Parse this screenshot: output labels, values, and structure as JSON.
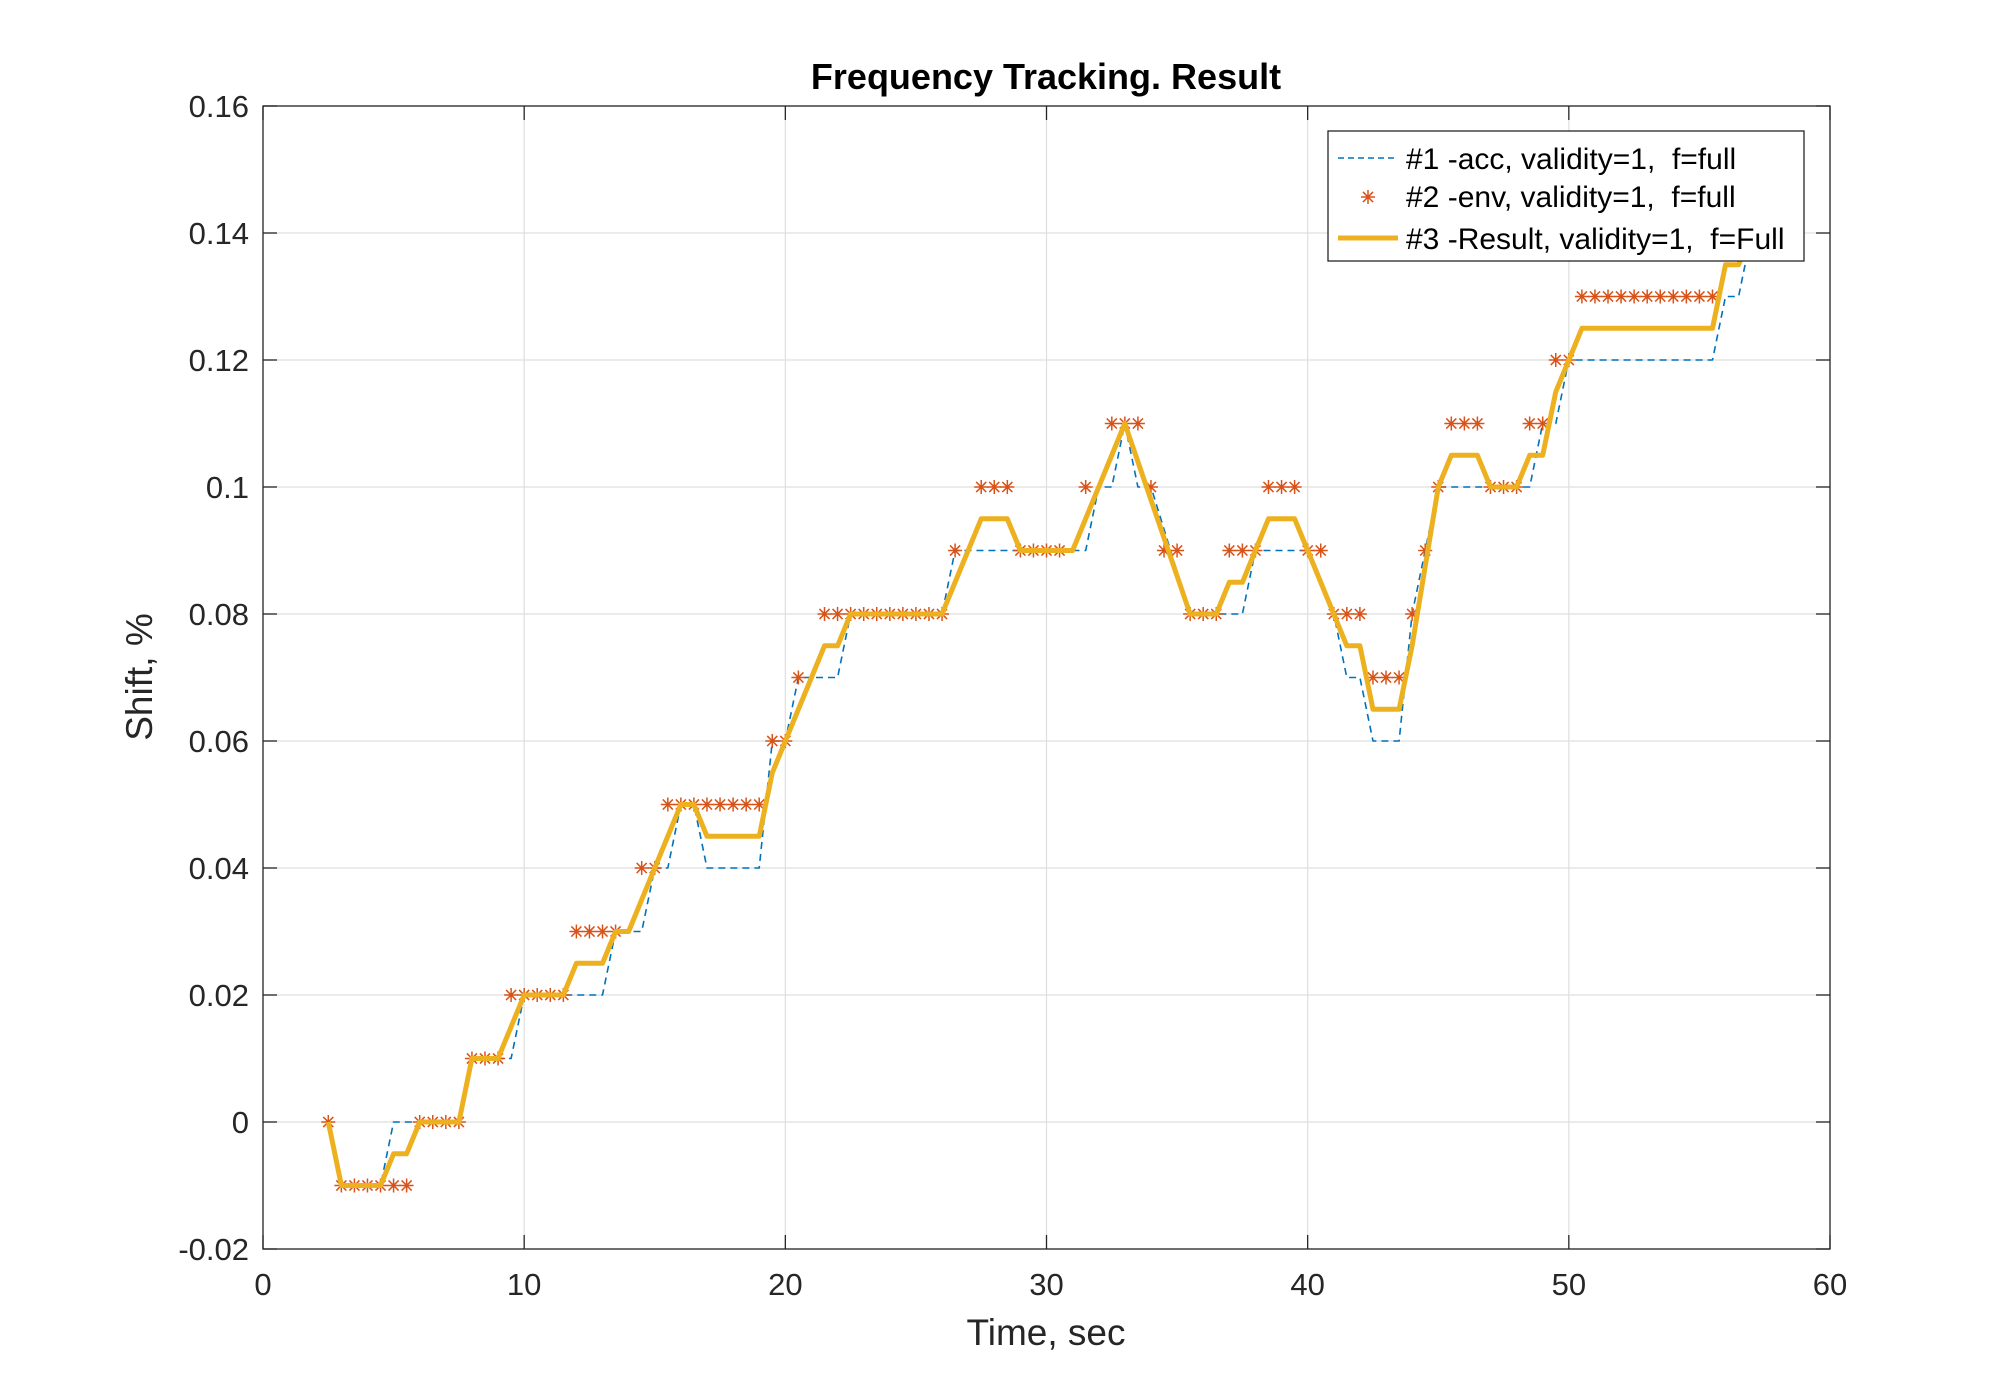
{
  "chart_data": {
    "type": "line",
    "title": "Frequency Tracking. Result",
    "xlabel": "Time, sec",
    "ylabel": "Shift, %",
    "xlim": [
      0,
      60
    ],
    "ylim": [
      -0.02,
      0.16
    ],
    "xticks": [
      0,
      10,
      20,
      30,
      40,
      50,
      60
    ],
    "xtick_labels": [
      "0",
      "10",
      "20",
      "30",
      "40",
      "50",
      "60"
    ],
    "yticks": [
      -0.02,
      0,
      0.02,
      0.04,
      0.06,
      0.08,
      0.1,
      0.12,
      0.14,
      0.16
    ],
    "ytick_labels": [
      "-0.02",
      "0",
      "0.02",
      "0.04",
      "0.06",
      "0.08",
      "0.1",
      "0.12",
      "0.14",
      "0.16"
    ],
    "grid": true,
    "legend_position": "top-right",
    "series": [
      {
        "name": "#1 -acc, validity=1,  f=full",
        "style": "dashed-line",
        "color": "#0072BD",
        "points": [
          [
            2.5,
            0
          ],
          [
            3.0,
            -0.01
          ],
          [
            4.5,
            -0.01
          ],
          [
            5.0,
            0
          ],
          [
            7.5,
            0
          ],
          [
            8.0,
            0.01
          ],
          [
            9.5,
            0.01
          ],
          [
            10.0,
            0.02
          ],
          [
            13.0,
            0.02
          ],
          [
            13.5,
            0.03
          ],
          [
            14.5,
            0.03
          ],
          [
            15.0,
            0.04
          ],
          [
            15.5,
            0.04
          ],
          [
            16.0,
            0.05
          ],
          [
            16.5,
            0.05
          ],
          [
            17.0,
            0.04
          ],
          [
            19.0,
            0.04
          ],
          [
            19.5,
            0.06
          ],
          [
            20.0,
            0.06
          ],
          [
            20.5,
            0.07
          ],
          [
            22.0,
            0.07
          ],
          [
            22.5,
            0.08
          ],
          [
            26.0,
            0.08
          ],
          [
            26.5,
            0.09
          ],
          [
            31.5,
            0.09
          ],
          [
            32.0,
            0.1
          ],
          [
            32.5,
            0.1
          ],
          [
            33.0,
            0.11
          ],
          [
            33.5,
            0.1
          ],
          [
            34.0,
            0.1
          ],
          [
            35.5,
            0.08
          ],
          [
            37.5,
            0.08
          ],
          [
            38.0,
            0.09
          ],
          [
            40.0,
            0.09
          ],
          [
            41.0,
            0.08
          ],
          [
            41.5,
            0.07
          ],
          [
            42.0,
            0.07
          ],
          [
            42.5,
            0.06
          ],
          [
            43.5,
            0.06
          ],
          [
            44.0,
            0.08
          ],
          [
            45.0,
            0.1
          ],
          [
            48.5,
            0.1
          ],
          [
            49.0,
            0.11
          ],
          [
            49.5,
            0.11
          ],
          [
            50.0,
            0.12
          ],
          [
            55.5,
            0.12
          ],
          [
            56.0,
            0.13
          ],
          [
            56.5,
            0.13
          ],
          [
            57.0,
            0.14
          ]
        ]
      },
      {
        "name": "#2 -env, validity=1,  f=full",
        "style": "asterisk-markers",
        "color": "#D95319",
        "points": [
          [
            2.5,
            0
          ],
          [
            3.0,
            -0.01
          ],
          [
            3.5,
            -0.01
          ],
          [
            4.0,
            -0.01
          ],
          [
            4.5,
            -0.01
          ],
          [
            5.0,
            -0.01
          ],
          [
            5.5,
            -0.01
          ],
          [
            6.0,
            0
          ],
          [
            6.5,
            0
          ],
          [
            7.0,
            0
          ],
          [
            7.5,
            0
          ],
          [
            8.0,
            0.01
          ],
          [
            8.5,
            0.01
          ],
          [
            9.0,
            0.01
          ],
          [
            9.5,
            0.02
          ],
          [
            10.0,
            0.02
          ],
          [
            10.5,
            0.02
          ],
          [
            11.0,
            0.02
          ],
          [
            11.5,
            0.02
          ],
          [
            12.0,
            0.03
          ],
          [
            12.5,
            0.03
          ],
          [
            13.0,
            0.03
          ],
          [
            13.5,
            0.03
          ],
          [
            14.5,
            0.04
          ],
          [
            15.0,
            0.04
          ],
          [
            15.5,
            0.05
          ],
          [
            16.0,
            0.05
          ],
          [
            16.5,
            0.05
          ],
          [
            17.0,
            0.05
          ],
          [
            17.5,
            0.05
          ],
          [
            18.0,
            0.05
          ],
          [
            18.5,
            0.05
          ],
          [
            19.0,
            0.05
          ],
          [
            19.5,
            0.06
          ],
          [
            20.0,
            0.06
          ],
          [
            20.5,
            0.07
          ],
          [
            21.5,
            0.08
          ],
          [
            22.0,
            0.08
          ],
          [
            22.5,
            0.08
          ],
          [
            23.0,
            0.08
          ],
          [
            23.5,
            0.08
          ],
          [
            24.0,
            0.08
          ],
          [
            24.5,
            0.08
          ],
          [
            25.0,
            0.08
          ],
          [
            25.5,
            0.08
          ],
          [
            26.0,
            0.08
          ],
          [
            26.5,
            0.09
          ],
          [
            27.5,
            0.1
          ],
          [
            28.0,
            0.1
          ],
          [
            28.5,
            0.1
          ],
          [
            29.0,
            0.09
          ],
          [
            29.5,
            0.09
          ],
          [
            30.0,
            0.09
          ],
          [
            30.5,
            0.09
          ],
          [
            31.5,
            0.1
          ],
          [
            32.5,
            0.11
          ],
          [
            33.0,
            0.11
          ],
          [
            33.5,
            0.11
          ],
          [
            34.0,
            0.1
          ],
          [
            34.5,
            0.09
          ],
          [
            35.0,
            0.09
          ],
          [
            35.5,
            0.08
          ],
          [
            36.0,
            0.08
          ],
          [
            36.5,
            0.08
          ],
          [
            37.0,
            0.09
          ],
          [
            37.5,
            0.09
          ],
          [
            38.0,
            0.09
          ],
          [
            38.5,
            0.1
          ],
          [
            39.0,
            0.1
          ],
          [
            39.5,
            0.1
          ],
          [
            40.0,
            0.09
          ],
          [
            40.5,
            0.09
          ],
          [
            41.0,
            0.08
          ],
          [
            41.5,
            0.08
          ],
          [
            42.0,
            0.08
          ],
          [
            42.5,
            0.07
          ],
          [
            43.0,
            0.07
          ],
          [
            43.5,
            0.07
          ],
          [
            44.0,
            0.08
          ],
          [
            44.5,
            0.09
          ],
          [
            45.0,
            0.1
          ],
          [
            45.5,
            0.11
          ],
          [
            46.0,
            0.11
          ],
          [
            46.5,
            0.11
          ],
          [
            47.0,
            0.1
          ],
          [
            47.5,
            0.1
          ],
          [
            48.0,
            0.1
          ],
          [
            48.5,
            0.11
          ],
          [
            49.0,
            0.11
          ],
          [
            49.5,
            0.12
          ],
          [
            50.0,
            0.12
          ],
          [
            50.5,
            0.13
          ],
          [
            51.0,
            0.13
          ],
          [
            51.5,
            0.13
          ],
          [
            52.0,
            0.13
          ],
          [
            52.5,
            0.13
          ],
          [
            53.0,
            0.13
          ],
          [
            53.5,
            0.13
          ],
          [
            54.0,
            0.13
          ],
          [
            54.5,
            0.13
          ],
          [
            55.0,
            0.13
          ],
          [
            55.5,
            0.13
          ]
        ]
      },
      {
        "name": "#3 -Result, validity=1,  f=Full",
        "style": "solid-thick-line",
        "color": "#EDB120",
        "points": [
          [
            2.5,
            0
          ],
          [
            3.0,
            -0.01
          ],
          [
            4.5,
            -0.01
          ],
          [
            5.0,
            -0.005
          ],
          [
            5.5,
            -0.005
          ],
          [
            6.0,
            0
          ],
          [
            7.5,
            0
          ],
          [
            8.0,
            0.01
          ],
          [
            9.0,
            0.01
          ],
          [
            9.5,
            0.015
          ],
          [
            10.0,
            0.02
          ],
          [
            11.5,
            0.02
          ],
          [
            12.0,
            0.025
          ],
          [
            13.0,
            0.025
          ],
          [
            13.5,
            0.03
          ],
          [
            14.0,
            0.03
          ],
          [
            16.0,
            0.05
          ],
          [
            16.5,
            0.05
          ],
          [
            17.0,
            0.045
          ],
          [
            19.0,
            0.045
          ],
          [
            19.5,
            0.055
          ],
          [
            21.5,
            0.075
          ],
          [
            22.0,
            0.075
          ],
          [
            22.5,
            0.08
          ],
          [
            26.0,
            0.08
          ],
          [
            27.5,
            0.095
          ],
          [
            28.5,
            0.095
          ],
          [
            29.0,
            0.09
          ],
          [
            31.0,
            0.09
          ],
          [
            33.0,
            0.11
          ],
          [
            35.5,
            0.08
          ],
          [
            36.5,
            0.08
          ],
          [
            37.0,
            0.085
          ],
          [
            37.5,
            0.085
          ],
          [
            38.0,
            0.09
          ],
          [
            38.5,
            0.095
          ],
          [
            39.5,
            0.095
          ],
          [
            40.0,
            0.09
          ],
          [
            41.5,
            0.075
          ],
          [
            42.0,
            0.075
          ],
          [
            42.5,
            0.065
          ],
          [
            43.5,
            0.065
          ],
          [
            44.0,
            0.075
          ],
          [
            45.0,
            0.1
          ],
          [
            45.5,
            0.105
          ],
          [
            46.5,
            0.105
          ],
          [
            47.0,
            0.1
          ],
          [
            48.0,
            0.1
          ],
          [
            48.5,
            0.105
          ],
          [
            49.0,
            0.105
          ],
          [
            49.5,
            0.115
          ],
          [
            50.5,
            0.125
          ],
          [
            55.5,
            0.125
          ],
          [
            56.0,
            0.135
          ],
          [
            56.5,
            0.135
          ],
          [
            57.0,
            0.14
          ]
        ]
      }
    ]
  }
}
